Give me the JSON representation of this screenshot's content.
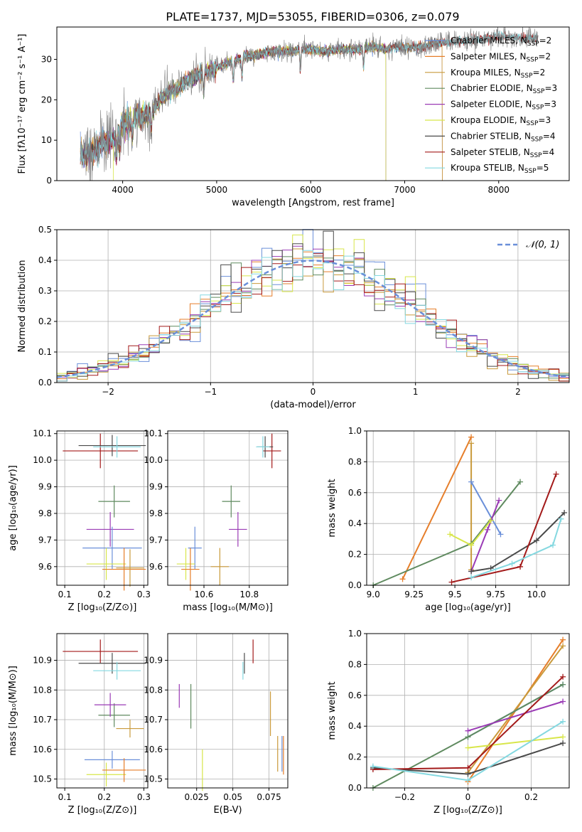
{
  "figure": {
    "title": "PLATE=1737, MJD=53055, FIBERID=0306, z=0.079"
  },
  "models": [
    {
      "name": "Chabrier MILES",
      "nssp": 2,
      "legend": "Chabrier MILES, N",
      "legend_sub": "SSP",
      "legend_tail": "=2",
      "color": "#6a8fd9"
    },
    {
      "name": "Salpeter MILES",
      "nssp": 2,
      "legend": "Salpeter MILES, N",
      "legend_sub": "SSP",
      "legend_tail": "=2",
      "color": "#e67e2a"
    },
    {
      "name": "Kroupa MILES",
      "nssp": 2,
      "legend": "Kroupa MILES, N",
      "legend_sub": "SSP",
      "legend_tail": "=2",
      "color": "#c99a3b"
    },
    {
      "name": "Chabrier ELODIE",
      "nssp": 3,
      "legend": "Chabrier ELODIE, N",
      "legend_sub": "SSP",
      "legend_tail": "=3",
      "color": "#5f8a5f"
    },
    {
      "name": "Salpeter ELODIE",
      "nssp": 3,
      "legend": "Salpeter ELODIE, N",
      "legend_sub": "SSP",
      "legend_tail": "=3",
      "color": "#9a3bb5"
    },
    {
      "name": "Kroupa ELODIE",
      "nssp": 3,
      "legend": "Kroupa ELODIE, N",
      "legend_sub": "SSP",
      "legend_tail": "=3",
      "color": "#d8e64a"
    },
    {
      "name": "Chabrier STELIB",
      "nssp": 4,
      "legend": "Chabrier STELIB, N",
      "legend_sub": "SSP",
      "legend_tail": "=4",
      "color": "#4a4a4a"
    },
    {
      "name": "Salpeter STELIB",
      "nssp": 4,
      "legend": "Salpeter STELIB, N",
      "legend_sub": "SSP",
      "legend_tail": "=4",
      "color": "#a31a1a"
    },
    {
      "name": "Kroupa STELIB",
      "nssp": 5,
      "legend": "Kroupa STELIB, N",
      "legend_sub": "SSP",
      "legend_tail": "=5",
      "color": "#84d8e0"
    }
  ],
  "chart_data": [
    {
      "id": "spectrum",
      "type": "line",
      "xlabel": "wavelength [Angstrom, rest frame]",
      "ylabel": "Flux [fλ10⁻¹⁷ erg cm⁻² s⁻¹ A⁻¹]",
      "xlim": [
        3300,
        8750
      ],
      "ylim": [
        0,
        38
      ],
      "xticks": [
        4000,
        5000,
        6000,
        7000,
        8000
      ],
      "yticks": [
        0,
        10,
        20,
        30
      ],
      "x_start": 3550,
      "x_end": 8420,
      "data_color": "#808080",
      "continuum": [
        [
          3550,
          6
        ],
        [
          3650,
          7
        ],
        [
          3800,
          9
        ],
        [
          3900,
          10
        ],
        [
          4000,
          14
        ],
        [
          4100,
          15
        ],
        [
          4200,
          16
        ],
        [
          4300,
          17
        ],
        [
          4400,
          20
        ],
        [
          4500,
          22
        ],
        [
          4600,
          23
        ],
        [
          4700,
          25
        ],
        [
          4800,
          26
        ],
        [
          4900,
          27
        ],
        [
          5000,
          28
        ],
        [
          5100,
          29
        ],
        [
          5200,
          29.5
        ],
        [
          5300,
          31
        ],
        [
          5400,
          31
        ],
        [
          5500,
          31.5
        ],
        [
          5600,
          32
        ],
        [
          5700,
          32
        ],
        [
          5800,
          32
        ],
        [
          5900,
          32.5
        ],
        [
          6000,
          32.5
        ],
        [
          6100,
          32
        ],
        [
          6200,
          32
        ],
        [
          6300,
          32.5
        ],
        [
          6400,
          32.5
        ],
        [
          6500,
          32.5
        ],
        [
          6600,
          33
        ],
        [
          6700,
          33
        ],
        [
          6800,
          32.5
        ],
        [
          6900,
          33
        ],
        [
          7000,
          33
        ],
        [
          7100,
          33
        ],
        [
          7200,
          33
        ],
        [
          7300,
          34
        ],
        [
          7400,
          34
        ],
        [
          7600,
          34.5
        ],
        [
          7800,
          35
        ],
        [
          8000,
          35.5
        ],
        [
          8200,
          35.5
        ],
        [
          8420,
          35
        ]
      ],
      "absorption_lines": [
        3934,
        3969,
        4102,
        4304,
        4861,
        5175,
        5270,
        5890,
        6563
      ],
      "model_x_start": {
        "Kroupa ELODIE": 3900,
        "Chabrier MILES": 3540,
        "Salpeter MILES": 3540
      },
      "model_x_end": {
        "Kroupa ELODIE": 6800,
        "Chabrier ELODIE": 6800,
        "Salpeter ELODIE": 6800,
        "Chabrier MILES": 7400,
        "Salpeter MILES": 7400,
        "Kroupa MILES": 7400
      }
    },
    {
      "id": "residual-histogram",
      "type": "histogram",
      "xlabel": "(data-model)/error",
      "ylabel": "Normed distribution",
      "xlim": [
        -2.5,
        2.5
      ],
      "ylim": [
        0,
        0.5
      ],
      "xticks": [
        -2,
        -1,
        0,
        1,
        2
      ],
      "yticks": [
        0.0,
        0.1,
        0.2,
        0.3,
        0.4,
        0.5
      ],
      "bin_width": 0.1,
      "reference_curve": {
        "label": "𝒩(0, 1)",
        "color": "#6a8fd9"
      }
    },
    {
      "id": "age-vs-metallicity",
      "type": "errorbar",
      "xlabel": "Z [log₁₀(Z/Z⊙)]",
      "ylabel": "age  [log₁₀(age/yr)]",
      "xlim": [
        0.08,
        0.31
      ],
      "ylim": [
        9.53,
        10.11
      ],
      "xticks": [
        0.1,
        0.2,
        0.3
      ],
      "yticks": [
        9.6,
        9.7,
        9.8,
        9.9,
        10.0,
        10.1
      ],
      "points": [
        {
          "model": "Salpeter STELIB",
          "x": 0.19,
          "xerr": 0.095,
          "y": 10.035,
          "yerr": 0.065
        },
        {
          "model": "Chabrier STELIB",
          "x": 0.22,
          "xerr": 0.085,
          "y": 10.055,
          "yerr": 0.04
        },
        {
          "model": "Kroupa STELIB",
          "x": 0.232,
          "xerr": 0.06,
          "y": 10.05,
          "yerr": 0.04
        },
        {
          "model": "Chabrier ELODIE",
          "x": 0.225,
          "xerr": 0.04,
          "y": 9.845,
          "yerr": 0.06
        },
        {
          "model": "Salpeter ELODIE",
          "x": 0.215,
          "xerr": 0.06,
          "y": 9.74,
          "yerr": 0.065
        },
        {
          "model": "Chabrier MILES",
          "x": 0.22,
          "xerr": 0.075,
          "y": 9.67,
          "yerr": 0.08
        },
        {
          "model": "Kroupa ELODIE",
          "x": 0.205,
          "xerr": 0.05,
          "y": 9.61,
          "yerr": 0.06
        },
        {
          "model": "Salpeter MILES",
          "x": 0.25,
          "xerr": 0.055,
          "y": 9.59,
          "yerr": 0.08
        },
        {
          "model": "Kroupa MILES",
          "x": 0.265,
          "xerr": 0.035,
          "y": 9.595,
          "yerr": 0.07
        }
      ]
    },
    {
      "id": "age-vs-mass",
      "type": "errorbar",
      "xlabel": "mass [log₁₀(M/M⊙)]",
      "ylabel": "",
      "xlim": [
        10.44,
        10.97
      ],
      "ylim": [
        9.53,
        10.11
      ],
      "xticks": [
        10.6,
        10.8
      ],
      "yticks": [
        9.6,
        9.7,
        9.8,
        9.9,
        10.0,
        10.1
      ],
      "points": [
        {
          "model": "Salpeter STELIB",
          "x": 10.9,
          "xerr": 0.04,
          "y": 10.035,
          "yerr": 0.065
        },
        {
          "model": "Chabrier STELIB",
          "x": 10.87,
          "xerr": 0.035,
          "y": 10.05,
          "yerr": 0.04
        },
        {
          "model": "Kroupa STELIB",
          "x": 10.86,
          "xerr": 0.03,
          "y": 10.05,
          "yerr": 0.04
        },
        {
          "model": "Chabrier ELODIE",
          "x": 10.72,
          "xerr": 0.04,
          "y": 9.845,
          "yerr": 0.06
        },
        {
          "model": "Salpeter ELODIE",
          "x": 10.75,
          "xerr": 0.04,
          "y": 9.74,
          "yerr": 0.065
        },
        {
          "model": "Chabrier MILES",
          "x": 10.56,
          "xerr": 0.03,
          "y": 9.67,
          "yerr": 0.08
        },
        {
          "model": "Kroupa ELODIE",
          "x": 10.52,
          "xerr": 0.04,
          "y": 9.61,
          "yerr": 0.06
        },
        {
          "model": "Salpeter MILES",
          "x": 10.54,
          "xerr": 0.04,
          "y": 9.59,
          "yerr": 0.08
        },
        {
          "model": "Kroupa MILES",
          "x": 10.67,
          "xerr": 0.04,
          "y": 9.6,
          "yerr": 0.07
        }
      ]
    },
    {
      "id": "mass-weight-vs-age",
      "type": "line",
      "xlabel": "age  [log₁₀(age/yr)]",
      "ylabel": "mass weight",
      "xlim": [
        8.96,
        10.2
      ],
      "ylim": [
        0,
        1.0
      ],
      "xticks": [
        9.0,
        9.25,
        9.5,
        9.75,
        10.0
      ],
      "yticks": [
        0.0,
        0.2,
        0.4,
        0.6,
        0.8,
        1.0
      ],
      "series": [
        {
          "model": "Salpeter MILES",
          "x": [
            9.18,
            9.6
          ],
          "y": [
            0.04,
            0.96
          ]
        },
        {
          "model": "Kroupa MILES",
          "x": [
            9.6,
            9.6
          ],
          "y": [
            0.1,
            0.92
          ]
        },
        {
          "model": "Chabrier MILES",
          "x": [
            9.6,
            9.78
          ],
          "y": [
            0.67,
            0.33
          ]
        },
        {
          "model": "Chabrier ELODIE",
          "x": [
            9.0,
            9.6,
            9.9
          ],
          "y": [
            0.0,
            0.27,
            0.67
          ]
        },
        {
          "model": "Salpeter ELODIE",
          "x": [
            9.6,
            9.7,
            9.77
          ],
          "y": [
            0.09,
            0.36,
            0.55
          ]
        },
        {
          "model": "Kroupa ELODIE",
          "x": [
            9.47,
            9.6,
            9.72
          ],
          "y": [
            0.33,
            0.26,
            0.42
          ]
        },
        {
          "model": "Chabrier STELIB",
          "x": [
            9.6,
            9.72,
            10.0,
            10.17
          ],
          "y": [
            0.09,
            0.11,
            0.29,
            0.47
          ]
        },
        {
          "model": "Salpeter STELIB",
          "x": [
            9.48,
            9.9,
            10.12
          ],
          "y": [
            0.02,
            0.12,
            0.72
          ]
        },
        {
          "model": "Kroupa STELIB",
          "x": [
            9.6,
            9.85,
            10.1,
            10.15
          ],
          "y": [
            0.05,
            0.14,
            0.26,
            0.43
          ]
        }
      ]
    },
    {
      "id": "mass-vs-metallicity",
      "type": "errorbar",
      "xlabel": "Z [log₁₀(Z/Z⊙)]",
      "ylabel": "mass [log₁₀(M/M⊙)]",
      "xlim": [
        0.08,
        0.31
      ],
      "ylim": [
        10.47,
        10.99
      ],
      "xticks": [
        0.1,
        0.2,
        0.3
      ],
      "yticks": [
        10.5,
        10.6,
        10.7,
        10.8,
        10.9
      ],
      "points": [
        {
          "model": "Salpeter STELIB",
          "x": 0.19,
          "xerr": 0.095,
          "y": 10.93,
          "yerr": 0.04
        },
        {
          "model": "Chabrier STELIB",
          "x": 0.22,
          "xerr": 0.085,
          "y": 10.89,
          "yerr": 0.035
        },
        {
          "model": "Kroupa STELIB",
          "x": 0.232,
          "xerr": 0.06,
          "y": 10.865,
          "yerr": 0.03
        },
        {
          "model": "Chabrier ELODIE",
          "x": 0.225,
          "xerr": 0.04,
          "y": 10.715,
          "yerr": 0.04
        },
        {
          "model": "Salpeter ELODIE",
          "x": 0.215,
          "xerr": 0.04,
          "y": 10.75,
          "yerr": 0.04
        },
        {
          "model": "Chabrier MILES",
          "x": 0.22,
          "xerr": 0.07,
          "y": 10.565,
          "yerr": 0.03
        },
        {
          "model": "Kroupa ELODIE",
          "x": 0.205,
          "xerr": 0.05,
          "y": 10.515,
          "yerr": 0.04
        },
        {
          "model": "Salpeter MILES",
          "x": 0.25,
          "xerr": 0.055,
          "y": 10.53,
          "yerr": 0.04
        },
        {
          "model": "Kroupa MILES",
          "x": 0.265,
          "xerr": 0.035,
          "y": 10.67,
          "yerr": 0.03
        }
      ]
    },
    {
      "id": "mass-vs-extinction",
      "type": "errorbar",
      "xlabel": "E(B-V)",
      "ylabel": "",
      "xlim": [
        0.005,
        0.088
      ],
      "ylim": [
        10.47,
        10.99
      ],
      "xticks": [
        0.025,
        0.05,
        0.075
      ],
      "yticks": [
        10.5,
        10.6,
        10.7,
        10.8,
        10.9
      ],
      "points": [
        {
          "model": "Salpeter STELIB",
          "x": 0.064,
          "xerr": 0,
          "y": 10.93,
          "yerr": 0.04
        },
        {
          "model": "Chabrier STELIB",
          "x": 0.058,
          "xerr": 0,
          "y": 10.89,
          "yerr": 0.035
        },
        {
          "model": "Kroupa STELIB",
          "x": 0.057,
          "xerr": 0,
          "y": 10.865,
          "yerr": 0.03
        },
        {
          "model": "Chabrier ELODIE",
          "x": 0.021,
          "xerr": 0,
          "y": 10.745,
          "yerr": 0.075
        },
        {
          "model": "Salpeter ELODIE",
          "x": 0.013,
          "xerr": 0,
          "y": 10.78,
          "yerr": 0.04
        },
        {
          "model": "Chabrier MILES",
          "x": 0.084,
          "xerr": 0,
          "y": 10.585,
          "yerr": 0.06
        },
        {
          "model": "Kroupa ELODIE",
          "x": 0.029,
          "xerr": 0,
          "y": 10.53,
          "yerr": 0.07
        },
        {
          "model": "Salpeter MILES",
          "x": 0.085,
          "xerr": 0,
          "y": 10.58,
          "yerr": 0.065
        },
        {
          "model": "Kroupa MILES",
          "x": 0.081,
          "xerr": 0,
          "y": 10.585,
          "yerr": 0.06
        },
        {
          "model": "Kroupa MILES",
          "x": 0.076,
          "xerr": 0,
          "y": 10.72,
          "yerr": 0.075
        }
      ]
    },
    {
      "id": "mass-weight-vs-metallicity",
      "type": "line",
      "xlabel": "Z [log₁₀(Z/Z⊙)]",
      "ylabel": "mass weight",
      "xlim": [
        -0.32,
        0.32
      ],
      "ylim": [
        0,
        1.0
      ],
      "xticks": [
        -0.2,
        0.0,
        0.2
      ],
      "yticks": [
        0.0,
        0.2,
        0.4,
        0.6,
        0.8,
        1.0
      ],
      "series": [
        {
          "model": "Salpeter MILES",
          "x": [
            0.0,
            0.3
          ],
          "y": [
            0.04,
            0.96
          ]
        },
        {
          "model": "Kroupa MILES",
          "x": [
            0.0,
            0.3
          ],
          "y": [
            0.1,
            0.92
          ]
        },
        {
          "model": "Chabrier MILES",
          "x": [
            0.0,
            0.3
          ],
          "y": [
            0.33,
            0.67
          ]
        },
        {
          "model": "Chabrier ELODIE",
          "x": [
            -0.3,
            0.0,
            0.3
          ],
          "y": [
            0.0,
            0.33,
            0.67
          ]
        },
        {
          "model": "Salpeter ELODIE",
          "x": [
            0.0,
            0.3
          ],
          "y": [
            0.37,
            0.56
          ]
        },
        {
          "model": "Kroupa ELODIE",
          "x": [
            0.0,
            0.3
          ],
          "y": [
            0.26,
            0.33
          ]
        },
        {
          "model": "Chabrier STELIB",
          "x": [
            -0.3,
            0.0,
            0.3
          ],
          "y": [
            0.13,
            0.09,
            0.29
          ]
        },
        {
          "model": "Salpeter STELIB",
          "x": [
            -0.3,
            0.0,
            0.3
          ],
          "y": [
            0.12,
            0.13,
            0.72
          ]
        },
        {
          "model": "Kroupa STELIB",
          "x": [
            -0.3,
            0.0,
            0.3
          ],
          "y": [
            0.14,
            0.05,
            0.43
          ]
        }
      ]
    }
  ]
}
